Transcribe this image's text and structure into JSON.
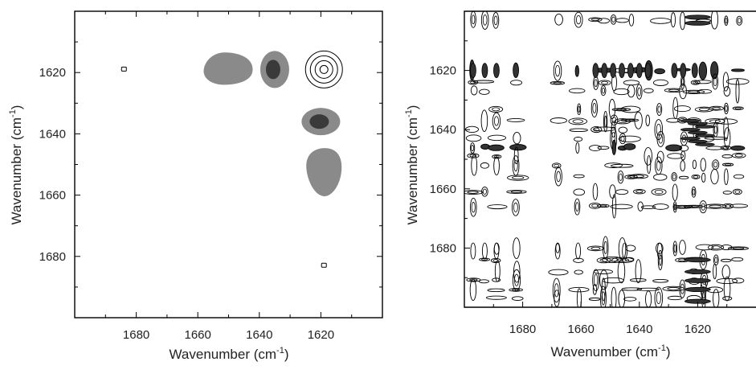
{
  "chart_data": [
    {
      "type": "contour",
      "title": "",
      "xlabel": "Wavenumber (cm",
      "xlabel_sup": "-1",
      "xlabel_close": ")",
      "ylabel": "Wavenumber (cm",
      "ylabel_sup": "-1",
      "ylabel_close": ")",
      "xlim": [
        1700,
        1600
      ],
      "ylim": [
        1600,
        1700
      ],
      "x_reversed": true,
      "y_reversed": true,
      "x_ticks_major": [
        1680,
        1660,
        1640,
        1620
      ],
      "x_ticks_minor": [
        1690,
        1670,
        1650,
        1630,
        1610
      ],
      "y_ticks_major": [
        1620,
        1640,
        1660,
        1680
      ],
      "y_ticks_minor": [
        1610,
        1630,
        1650,
        1670,
        1690
      ],
      "grid": false,
      "colors": {
        "fill_light": "#8a8a8a",
        "fill_dark": "#3a3a3a",
        "line": "#000000"
      },
      "features": [
        {
          "kind": "positive-peak-rings",
          "x": 1619,
          "y": 1619,
          "rings": 4
        },
        {
          "kind": "cross-peak-filled",
          "x": 1650,
          "y": 1619,
          "intensity": "light"
        },
        {
          "kind": "cross-peak-filled",
          "x": 1635,
          "y": 1619,
          "intensity": "dark"
        },
        {
          "kind": "cross-peak-filled",
          "x": 1620,
          "y": 1636,
          "intensity": "dark"
        },
        {
          "kind": "cross-peak-filled",
          "x": 1619,
          "y": 1652,
          "intensity": "light"
        },
        {
          "kind": "small-contour",
          "x": 1684,
          "y": 1619
        },
        {
          "kind": "small-contour",
          "x": 1619,
          "y": 1683
        }
      ]
    },
    {
      "type": "contour",
      "title": "",
      "xlabel": "Wavenumber (cm",
      "xlabel_sup": "-1",
      "xlabel_close": ")",
      "ylabel": "Wavenumber (cm",
      "ylabel_sup": "-1",
      "ylabel_close": ")",
      "xlim": [
        1700,
        1600
      ],
      "ylim": [
        1600,
        1700
      ],
      "x_reversed": true,
      "y_reversed": true,
      "x_ticks_major": [
        1680,
        1660,
        1640,
        1620
      ],
      "x_ticks_minor": [
        1690,
        1670,
        1650,
        1630,
        1610
      ],
      "y_ticks_major": [
        1620,
        1640,
        1660,
        1680
      ],
      "y_ticks_minor": [
        1610,
        1630,
        1650,
        1670,
        1690
      ],
      "grid": false,
      "colors": {
        "fill_dark": "#333333",
        "line": "#000000"
      },
      "peak_positions": [
        1697,
        1693,
        1689,
        1682,
        1668,
        1661,
        1655,
        1652,
        1649,
        1646,
        1643,
        1640,
        1637,
        1633,
        1628,
        1625,
        1621,
        1618,
        1614,
        1610,
        1606
      ],
      "features": [
        {
          "kind": "dense-cross-peak-pattern",
          "description_visible": false
        }
      ]
    }
  ]
}
